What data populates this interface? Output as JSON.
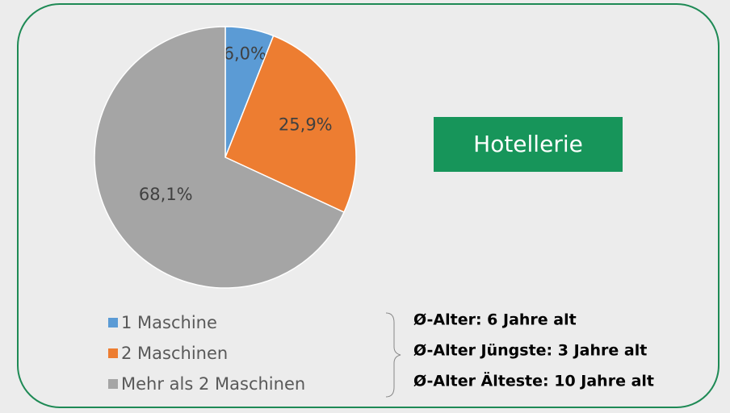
{
  "chart_data": {
    "type": "pie",
    "title": "Hotellerie",
    "categories": [
      "1 Maschine",
      "2 Maschinen",
      "Mehr als 2 Maschinen"
    ],
    "values": [
      6.0,
      25.9,
      68.1
    ],
    "value_labels": [
      "6,0%",
      "25,9%",
      "68,1%"
    ],
    "colors": [
      "#5b9bd5",
      "#ed7d31",
      "#a5a5a5"
    ],
    "annotations": [
      "Ø-Alter: 6 Jahre alt",
      "Ø-Alter Jüngste: 3 Jahre alt",
      "Ø-Alter Älteste: 10 Jahre alt"
    ]
  }
}
